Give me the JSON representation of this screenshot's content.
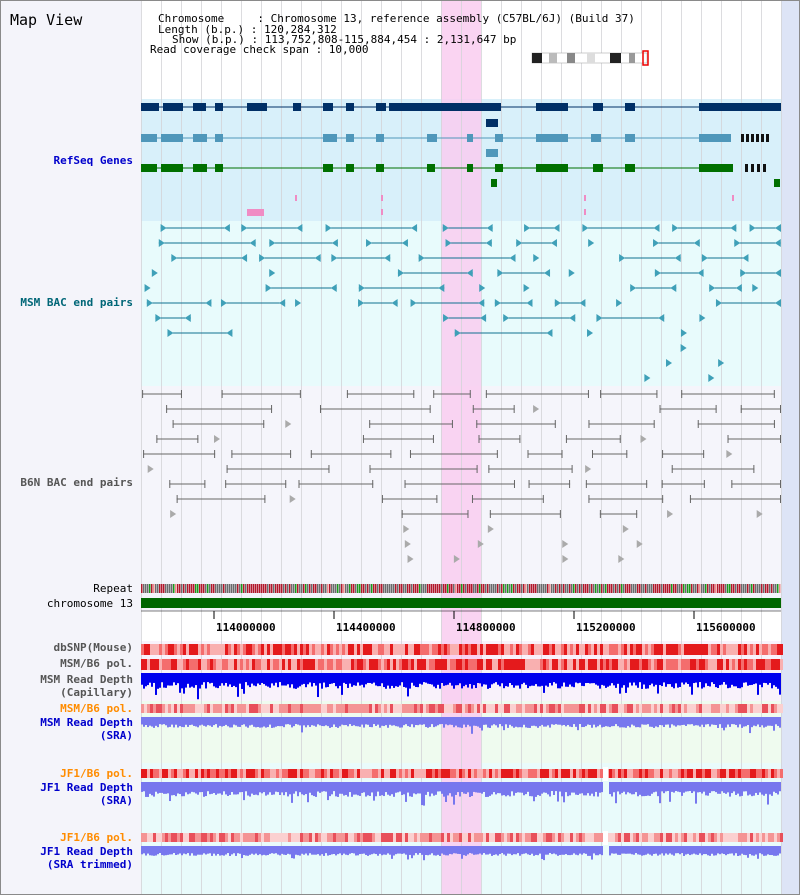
{
  "window": {
    "title": "Map View"
  },
  "info": {
    "chromosome": "Chromosome     : Chromosome 13, reference assembly (C57BL/6J) (Build 37)",
    "length": "Length (b.p.) : 120,284,312",
    "show": "Show (b.p.) : 113,752,808-115,884,454 : 2,131,647 bp",
    "coverage": "Read coverage check span : 10,000"
  },
  "tracks": {
    "refseq": "RefSeq Genes",
    "msm_bac": "MSM BAC end pairs",
    "b6n_bac": "B6N BAC end pairs",
    "repeat": "Repeat",
    "chromosome": "chromosome 13",
    "dbsnp": "dbSNP(Mouse)",
    "msm_pol_1": "MSM/B6 pol.",
    "msm_depth_cap_1": "MSM Read Depth",
    "msm_depth_cap_2": "(Capillary)",
    "msm_pol_2": "MSM/B6 pol.",
    "msm_depth_sra_1": "MSM Read Depth",
    "msm_depth_sra_2": "(SRA)",
    "jf1_pol_1": "JF1/B6 pol.",
    "jf1_depth_sra_1": "JF1 Read Depth",
    "jf1_depth_sra_2": "(SRA)",
    "jf1_pol_2": "JF1/B6 pol.",
    "jf1_depth_trim_1": "JF1 Read Depth",
    "jf1_depth_trim_2": "(SRA trimmed)"
  },
  "axis": {
    "ticks": [
      "114000000",
      "114400000",
      "114800000",
      "115200000",
      "115600000"
    ]
  },
  "colors": {
    "highlight": "#f9cdf0",
    "refseq_bg": "#d8f0fa",
    "msm_bg": "#e8fbfc",
    "b6n_bg": "#f5f5fb",
    "label_blue": "#0000cc",
    "label_teal": "#006677",
    "label_gray": "#555555",
    "label_orange": "#ff8c00",
    "gene_navy": "#002f66",
    "gene_steel": "#4f97ba",
    "gene_green": "#007000",
    "chrom_green": "#006600",
    "depth_blue": "#0000ee",
    "depth_light": "#7777ee"
  }
}
